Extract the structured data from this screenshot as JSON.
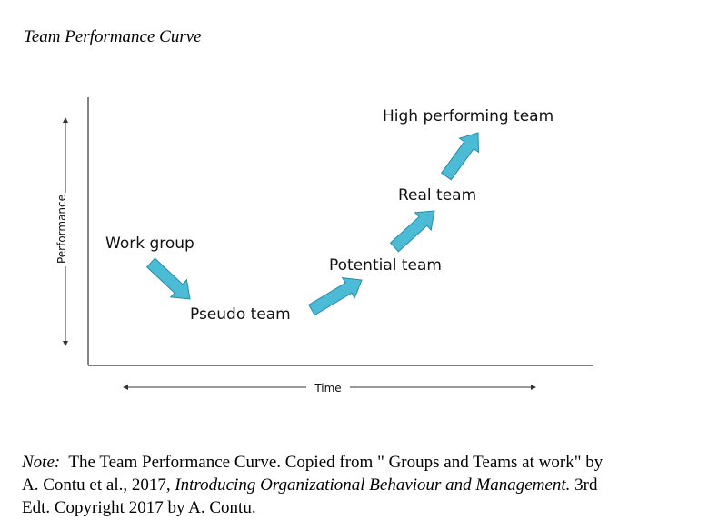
{
  "title": "Team Performance Curve",
  "axes": {
    "y_label": "Performance",
    "x_label": "Time"
  },
  "stages": [
    {
      "label": "Work group"
    },
    {
      "label": "Pseudo team"
    },
    {
      "label": "Potential team"
    },
    {
      "label": "Real team"
    },
    {
      "label": "High performing team"
    }
  ],
  "colors": {
    "arrow_fill": "#4bbbd6",
    "arrow_stroke": "#2a8aa5",
    "axis": "#333333"
  },
  "note": {
    "label": "Note:",
    "line1_rest": "The Team Performance Curve. Copied from \" Groups and Teams at work\" by",
    "line2_pre": "A. Contu et al., 2017, ",
    "line2_italic": "Introducing Organizational Behaviour and Management.",
    "line2_post": " 3rd",
    "line3": "Edt. Copyright 2017 by A. Contu."
  }
}
